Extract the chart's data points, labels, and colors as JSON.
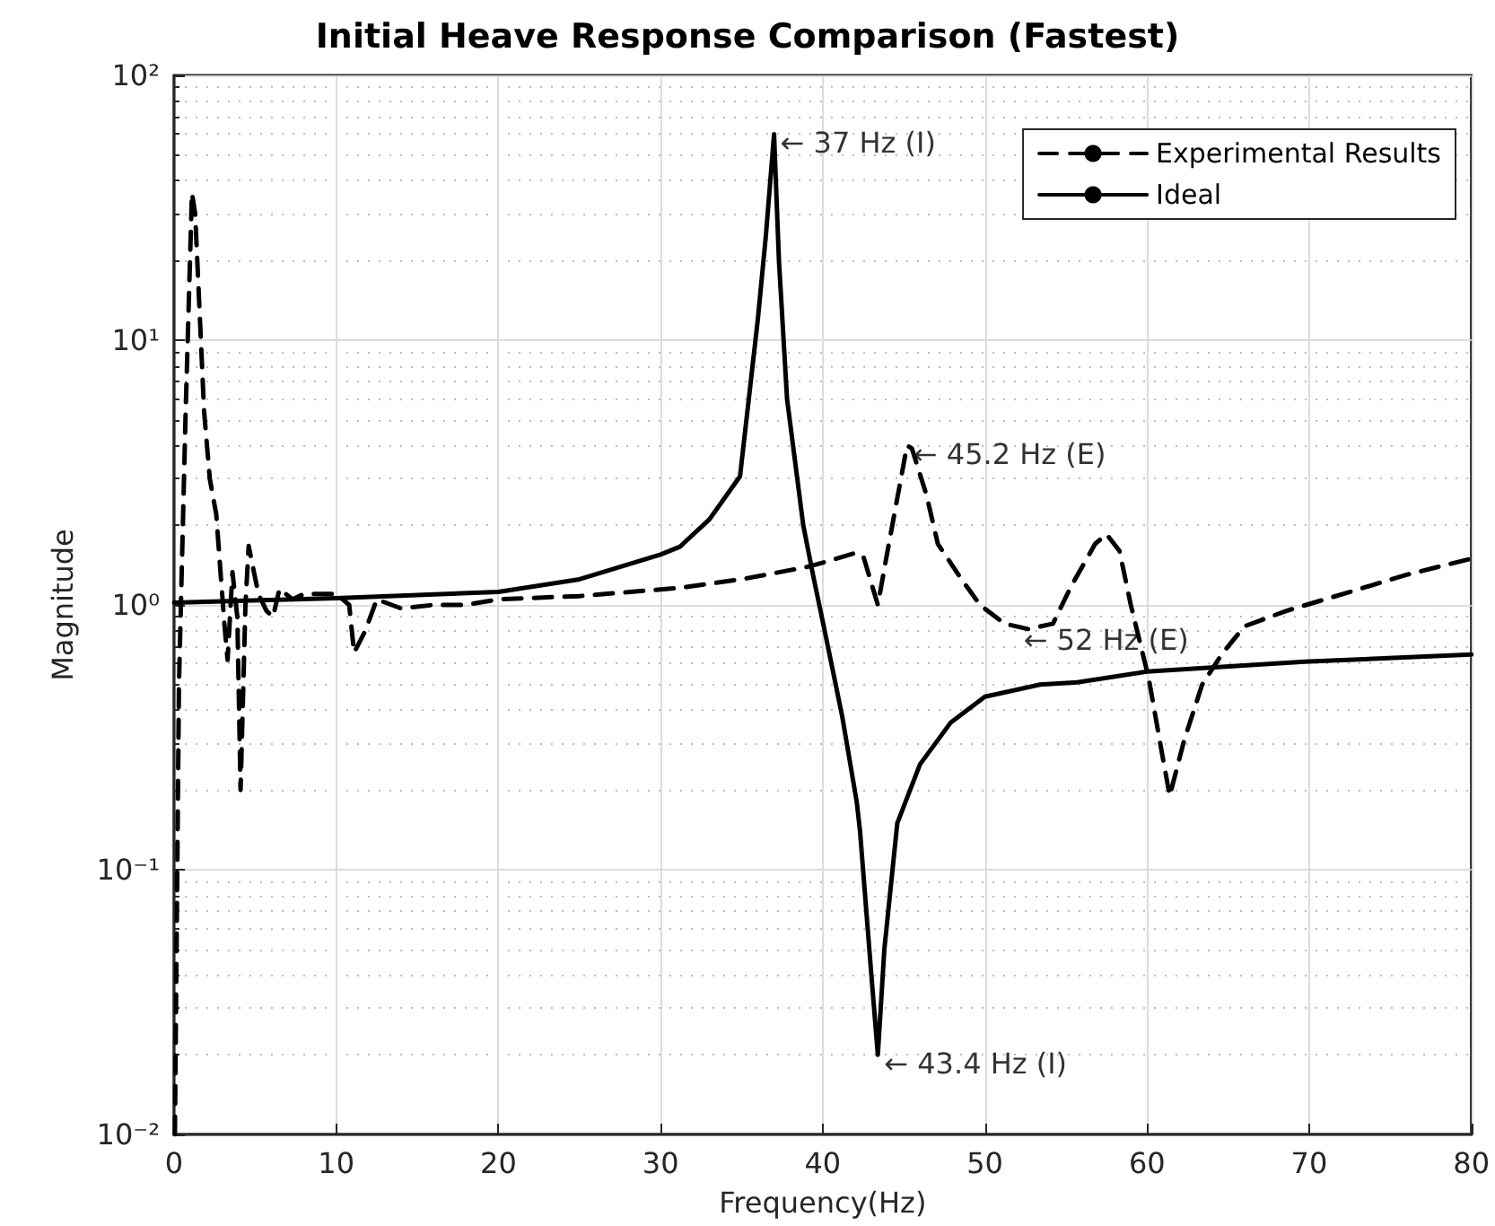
{
  "chart_data": {
    "type": "line",
    "title": "Initial Heave Response Comparison (Fastest)",
    "xlabel": "Frequency(Hz)",
    "ylabel": "Magnitude",
    "log": "y",
    "grid": true,
    "legend": "top right",
    "marker": "none",
    "xlim": [
      0,
      80
    ],
    "xticks": [
      0,
      10,
      20,
      30,
      40,
      50,
      60,
      70,
      80
    ],
    "ylim": [
      0.01,
      100
    ],
    "yticks": [
      {
        "value": 0.01,
        "label": "10⁻²"
      },
      {
        "value": 0.1,
        "label": "10⁻¹"
      },
      {
        "value": 1,
        "label": "10⁰"
      },
      {
        "value": 10,
        "label": "10¹"
      },
      {
        "value": 100,
        "label": "10²"
      }
    ],
    "series": [
      {
        "name": "Experimental Results",
        "color": "#000000",
        "line_style": "dashed",
        "x": [
          0.05,
          0.3,
          0.7,
          1.1,
          1.3,
          1.85,
          2.2,
          2.6,
          2.8,
          3.1,
          3.3,
          3.6,
          3.9,
          4.1,
          4.4,
          4.6,
          5.2,
          5.7,
          6.1,
          6.5,
          7.3,
          8,
          9,
          10,
          10.8,
          11.1,
          11.8,
          12.5,
          14,
          16,
          18,
          20,
          25,
          31.2,
          35,
          39,
          40.1,
          42,
          42.5,
          43.4,
          44,
          45.2,
          45.5,
          46.4,
          47.1,
          48.6,
          49.7,
          51.2,
          52.7,
          54.2,
          55.3,
          56.8,
          57.5,
          58.3,
          59,
          60.1,
          60.9,
          61.4,
          62.3,
          63.4,
          64.6,
          66,
          68.6,
          72.3,
          76,
          79.9
        ],
        "values": [
          0.01,
          0.5,
          5,
          36,
          30,
          5.4,
          3,
          2.2,
          1.5,
          0.85,
          0.62,
          1.33,
          0.9,
          0.2,
          1.0,
          1.67,
          1.1,
          0.95,
          0.9,
          1.15,
          1.05,
          1.1,
          1.1,
          1.1,
          1.0,
          0.66,
          0.8,
          1.05,
          0.97,
          1.0,
          1.0,
          1.05,
          1.08,
          1.16,
          1.25,
          1.39,
          1.45,
          1.57,
          1.53,
          1.0,
          1.6,
          4.0,
          3.9,
          2.6,
          1.7,
          1.24,
          1.0,
          0.85,
          0.81,
          0.85,
          1.17,
          1.7,
          1.85,
          1.6,
          1.0,
          0.53,
          0.28,
          0.19,
          0.31,
          0.5,
          0.65,
          0.83,
          0.95,
          1.11,
          1.3,
          1.49
        ]
      },
      {
        "name": "Ideal",
        "color": "#000000",
        "line_style": "solid",
        "x": [
          0,
          10,
          20,
          25,
          30,
          31.2,
          33,
          34.9,
          36,
          36.5,
          37,
          37.3,
          37.8,
          38.8,
          39.4,
          40.1,
          41.2,
          42.1,
          42.3,
          43,
          43.4,
          43.8,
          44.6,
          46,
          47.9,
          50,
          53.4,
          55.7,
          60,
          69.7,
          80
        ],
        "values": [
          1.02,
          1.06,
          1.12,
          1.25,
          1.55,
          1.66,
          2.1,
          3.06,
          12,
          25,
          60,
          20,
          6,
          2.0,
          1.3,
          0.81,
          0.38,
          0.18,
          0.14,
          0.04,
          0.02,
          0.05,
          0.15,
          0.25,
          0.36,
          0.45,
          0.5,
          0.51,
          0.56,
          0.61,
          0.65
        ]
      }
    ],
    "annotations": [
      {
        "text": "← 37 Hz (I)",
        "x": 37,
        "y": 60
      },
      {
        "text": "← 45.2 Hz (E)",
        "x": 45.2,
        "y": 4
      },
      {
        "text": "← 52 Hz (E)",
        "x": 52,
        "y": 0.8
      },
      {
        "text": "← 43.4 Hz (I)",
        "x": 43.4,
        "y": 0.02
      }
    ]
  }
}
